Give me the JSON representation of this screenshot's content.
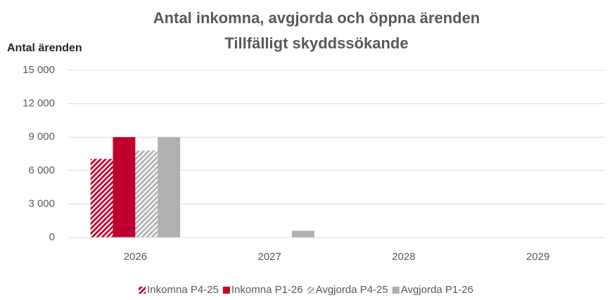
{
  "chart_data": {
    "type": "bar",
    "title": "Antal inkomna, avgjorda och öppna ärenden",
    "subtitle": "Tillfälligt skyddssökande",
    "y_label": "Antal ärenden",
    "categories": [
      "2026",
      "2027",
      "2028",
      "2029"
    ],
    "series": [
      {
        "name": "Inkomna P4-25",
        "color": "#c0002f",
        "hatch": true,
        "values": [
          7050,
          0,
          0,
          0
        ]
      },
      {
        "name": "Inkomna P1-26",
        "color": "#c0002f",
        "hatch": false,
        "values": [
          9000,
          0,
          0,
          0
        ]
      },
      {
        "name": "Avgjorda P4-25",
        "color": "#b0b0b0",
        "hatch": true,
        "values": [
          7800,
          0,
          0,
          0
        ]
      },
      {
        "name": "Avgjorda P1-26",
        "color": "#b0b0b0",
        "hatch": false,
        "values": [
          9000,
          600,
          0,
          0
        ]
      }
    ],
    "ylim": [
      0,
      15000
    ],
    "yticks": [
      0,
      {
        "value": 3000,
        "label": "3 000"
      },
      {
        "value": 6000,
        "label": "6 000"
      },
      {
        "value": 9000,
        "label": "9 000"
      },
      {
        "value": 12000,
        "label": "12 000"
      },
      {
        "value": 15000,
        "label": "15 000"
      }
    ],
    "grid": true,
    "legend": "bottom"
  }
}
